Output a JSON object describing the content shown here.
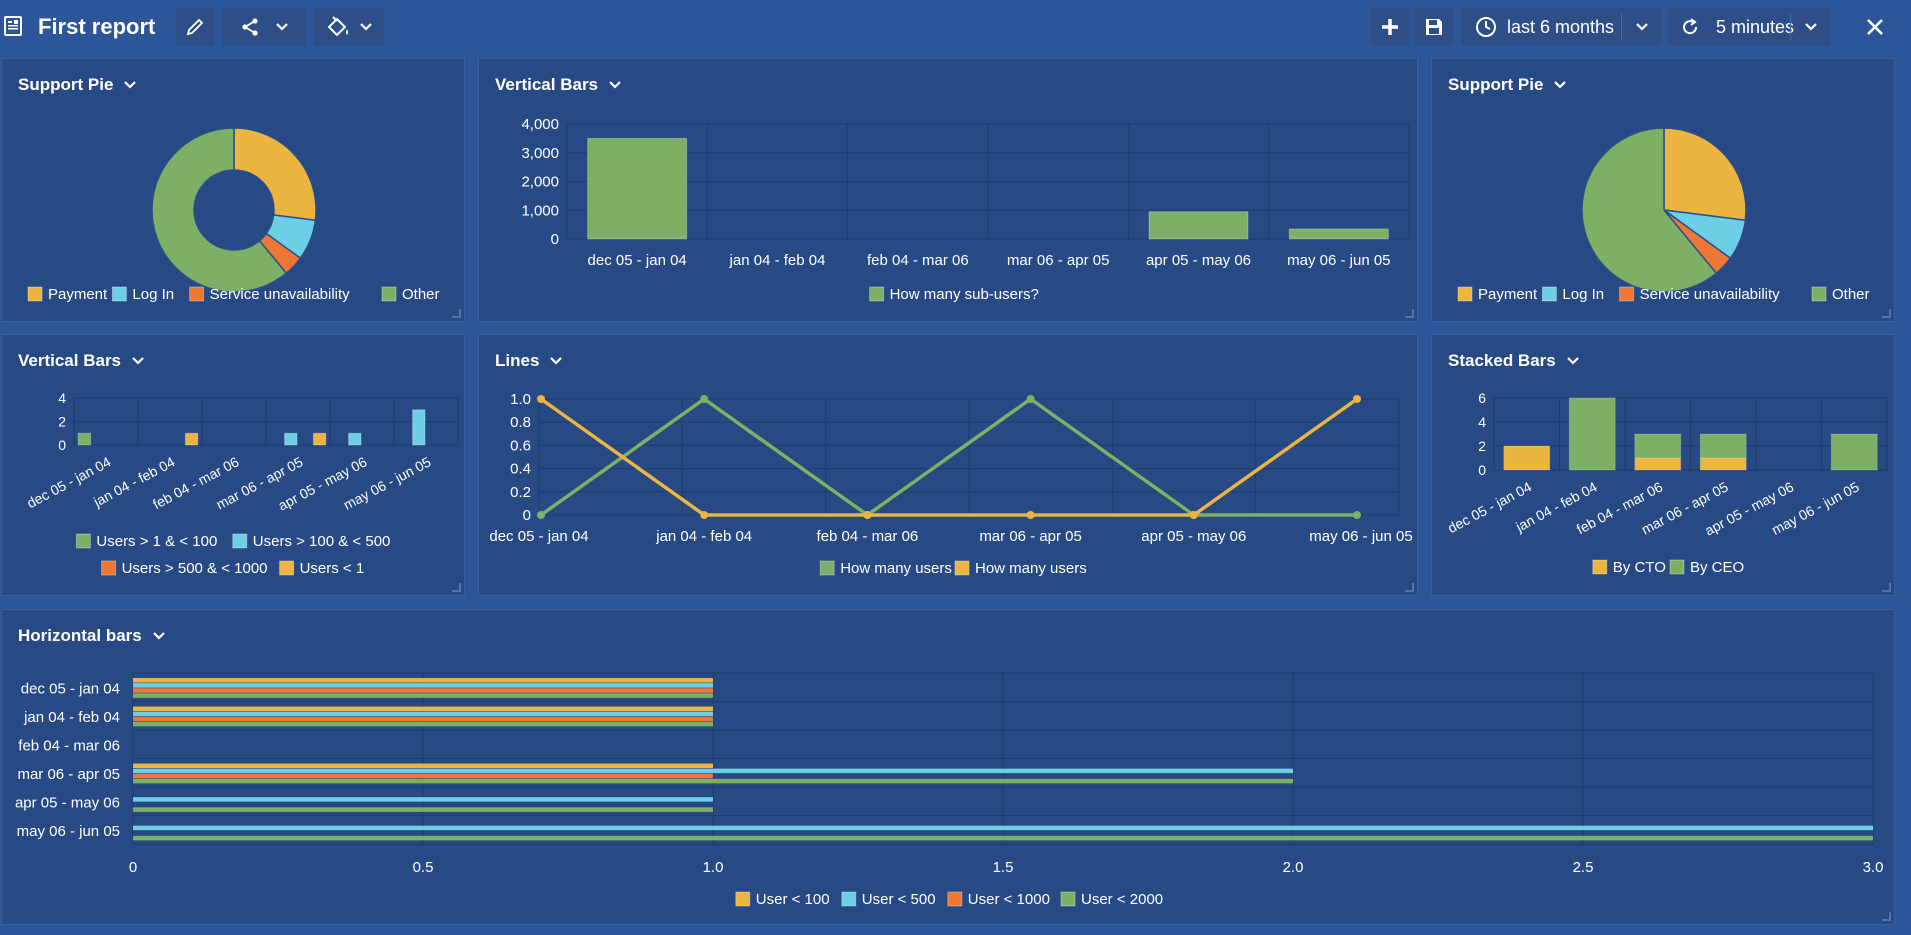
{
  "header": {
    "title": "First report",
    "time_range": "last 6 months",
    "refresh": "5 minutes"
  },
  "colors": {
    "payment": "#ebb540",
    "login": "#6dcfe5",
    "service": "#ee7735",
    "other": "#7db065",
    "grid": "#1e3c70"
  },
  "panels": {
    "p1": "Support Pie",
    "p2": "Vertical Bars",
    "p3": "Support Pie",
    "p4": "Vertical Bars",
    "p5": "Lines",
    "p6": "Stacked Bars",
    "p7": "Horizontal bars"
  },
  "chart_data": [
    {
      "id": "pie1",
      "type": "pie",
      "donut": true,
      "title": "Support Pie",
      "slices": [
        {
          "label": "Payment",
          "value": 27,
          "color": "#ebb540"
        },
        {
          "label": "Log In",
          "value": 8,
          "color": "#6dcfe5"
        },
        {
          "label": "Service unavailability",
          "value": 4,
          "color": "#ee7735"
        },
        {
          "label": "Other",
          "value": 61,
          "color": "#7db065"
        }
      ]
    },
    {
      "id": "vbar1",
      "type": "bar",
      "title": "Vertical Bars",
      "categories": [
        "dec 05 - jan 04",
        "jan 04 - feb 04",
        "feb 04 - mar 06",
        "mar 06 - apr 05",
        "apr 05 - may 06",
        "may 06 - jun 05"
      ],
      "series": [
        {
          "name": "How many sub-users?",
          "color": "#7db065",
          "values": [
            3500,
            0,
            0,
            0,
            950,
            350
          ]
        }
      ],
      "yticks": [
        "4,000",
        "3,000",
        "2,000",
        "1,000",
        "0"
      ],
      "ylim": [
        0,
        4000
      ]
    },
    {
      "id": "pie2",
      "type": "pie",
      "donut": false,
      "title": "Support Pie",
      "slices": [
        {
          "label": "Payment",
          "value": 27,
          "color": "#ebb540"
        },
        {
          "label": "Log In",
          "value": 8,
          "color": "#6dcfe5"
        },
        {
          "label": "Service unavailability",
          "value": 4,
          "color": "#ee7735"
        },
        {
          "label": "Other",
          "value": 61,
          "color": "#7db065"
        }
      ]
    },
    {
      "id": "vbar2",
      "type": "bar",
      "title": "Vertical Bars",
      "categories": [
        "dec 05 - jan 04",
        "jan 04 - feb 04",
        "feb 04 - mar 06",
        "mar 06 - apr 05",
        "apr 05 - may 06",
        "may 06 - jun 05"
      ],
      "series": [
        {
          "name": "Users > 1 & < 100",
          "color": "#7db065",
          "values": [
            1,
            0,
            0,
            0,
            0,
            0
          ]
        },
        {
          "name": "Users > 100 & < 500",
          "color": "#6dcfe5",
          "values": [
            0,
            0,
            0,
            1,
            1,
            3
          ]
        },
        {
          "name": "Users > 500 & < 1000",
          "color": "#ee7735",
          "values": [
            0,
            0,
            0,
            0,
            0,
            0
          ]
        },
        {
          "name": "Users < 1",
          "color": "#ebb540",
          "values": [
            0,
            1,
            0,
            1,
            0,
            0
          ]
        }
      ],
      "yticks": [
        "4",
        "2",
        "0"
      ],
      "ylim": [
        0,
        4
      ]
    },
    {
      "id": "lines",
      "type": "line",
      "title": "Lines",
      "categories": [
        "dec 05 - jan 04",
        "jan 04 - feb 04",
        "feb 04 - mar 06",
        "mar 06 - apr 05",
        "apr 05 - may 06",
        "may 06 - jun 05"
      ],
      "series": [
        {
          "name": "How many users",
          "color": "#7db065",
          "values": [
            0,
            1,
            0,
            1,
            0,
            0
          ]
        },
        {
          "name": "How many users",
          "color": "#ebb540",
          "values": [
            1,
            0,
            0,
            0,
            0,
            1
          ]
        }
      ],
      "yticks": [
        "1.0",
        "0.8",
        "0.6",
        "0.4",
        "0.2",
        "0"
      ],
      "ylim": [
        0,
        1
      ]
    },
    {
      "id": "stacked",
      "type": "bar",
      "stacked": true,
      "title": "Stacked Bars",
      "categories": [
        "dec 05 - jan 04",
        "jan 04 - feb 04",
        "feb 04 - mar 06",
        "mar 06 - apr 05",
        "apr 05 - may 06",
        "may 06 - jun 05"
      ],
      "series": [
        {
          "name": "By CTO",
          "color": "#ebb540",
          "values": [
            2,
            0,
            1,
            1,
            0,
            0
          ]
        },
        {
          "name": "By CEO",
          "color": "#7db065",
          "values": [
            0,
            6,
            2,
            2,
            0,
            3
          ]
        }
      ],
      "yticks": [
        "6",
        "4",
        "2",
        "0"
      ],
      "ylim": [
        0,
        6
      ]
    },
    {
      "id": "hbar",
      "type": "bar",
      "orientation": "horizontal",
      "title": "Horizontal bars",
      "categories": [
        "dec 05 - jan 04",
        "jan 04 - feb 04",
        "feb 04 - mar 06",
        "mar 06 - apr 05",
        "apr 05 - may 06",
        "may 06 - jun 05"
      ],
      "series": [
        {
          "name": "User < 100",
          "color": "#ebb540",
          "values": [
            1,
            1,
            0,
            1,
            0,
            0
          ]
        },
        {
          "name": "User < 500",
          "color": "#6dcfe5",
          "values": [
            1,
            1,
            0,
            2,
            1,
            3
          ]
        },
        {
          "name": "User < 1000",
          "color": "#ee7735",
          "values": [
            1,
            1,
            0,
            1,
            0,
            0
          ]
        },
        {
          "name": "User < 2000",
          "color": "#7db065",
          "values": [
            1,
            1,
            0,
            2,
            1,
            3
          ]
        }
      ],
      "xticks": [
        "0",
        "0.5",
        "1.0",
        "1.5",
        "2.0",
        "2.5",
        "3.0"
      ],
      "xlim": [
        0,
        3
      ]
    }
  ]
}
